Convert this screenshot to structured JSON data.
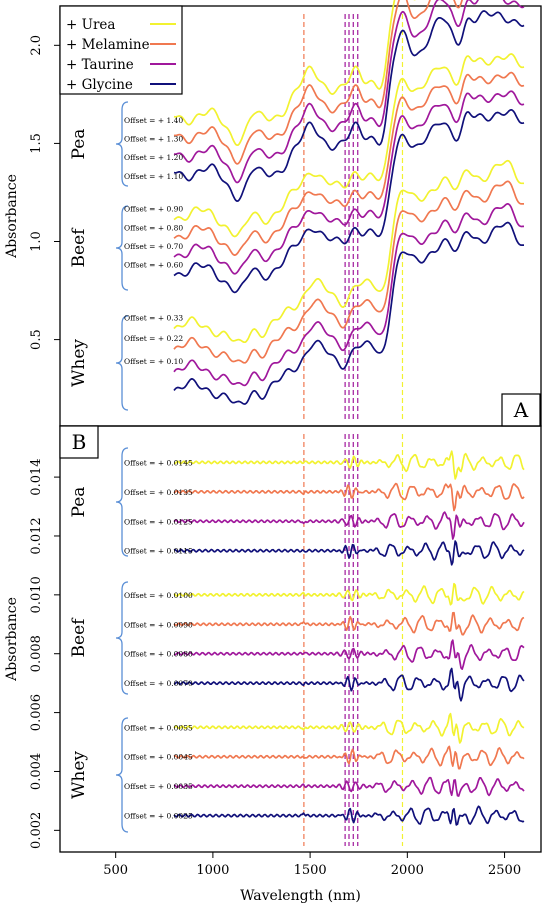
{
  "chart_data": [
    {
      "panel": "A",
      "type": "line",
      "xlabel": "Wavelength (nm)",
      "ylabel": "Absorbance",
      "xlim": [
        800,
        2600
      ],
      "ylim": [
        0.08,
        2.18
      ],
      "yticks": [
        "0.5",
        "1.0",
        "1.5",
        "2.0"
      ],
      "ytick_values": [
        0.5,
        1.0,
        1.5,
        2.0
      ],
      "legend": {
        "placement": "top-left",
        "entries": [
          {
            "label": "+ Urea",
            "color": "#f2f230"
          },
          {
            "label": "+ Melamine",
            "color": "#f07850"
          },
          {
            "label": "+ Taurine",
            "color": "#a0189c"
          },
          {
            "label": "+ Glycine",
            "color": "#10107a"
          }
        ]
      },
      "reference_lines": [
        {
          "x": 1468,
          "color": "#f07850"
        },
        {
          "x": 1680,
          "color": "#a0189c"
        },
        {
          "x": 1700,
          "color": "#a0189c"
        },
        {
          "x": 1722,
          "color": "#a0189c"
        },
        {
          "x": 1745,
          "color": "#a0189c"
        },
        {
          "x": 1975,
          "color": "#f2f230"
        }
      ],
      "groups": [
        {
          "name": "Pea",
          "series": [
            {
              "additive": "Urea",
              "offset_label": "Offset = + 1.40",
              "offset": 1.4,
              "color": "#f2f230"
            },
            {
              "additive": "Melamine",
              "offset_label": "Offset = + 1.30",
              "offset": 1.3,
              "color": "#f07850"
            },
            {
              "additive": "Taurine",
              "offset_label": "Offset = + 1.20",
              "offset": 1.2,
              "color": "#a0189c"
            },
            {
              "additive": "Glycine",
              "offset_label": "Offset = + 1.10",
              "offset": 1.1,
              "color": "#10107a"
            }
          ]
        },
        {
          "name": "Beef",
          "series": [
            {
              "additive": "Urea",
              "offset_label": "Offset = + 0.90",
              "offset": 0.9,
              "color": "#f2f230"
            },
            {
              "additive": "Melamine",
              "offset_label": "Offset = + 0.80",
              "offset": 0.8,
              "color": "#f07850"
            },
            {
              "additive": "Taurine",
              "offset_label": "Offset = + 0.70",
              "offset": 0.7,
              "color": "#a0189c"
            },
            {
              "additive": "Glycine",
              "offset_label": "Offset = + 0.60",
              "offset": 0.6,
              "color": "#10107a"
            }
          ]
        },
        {
          "name": "Whey",
          "series": [
            {
              "additive": "Urea",
              "offset_label": "Offset = + 0.33",
              "offset": 0.33,
              "color": "#f2f230"
            },
            {
              "additive": "Melamine",
              "offset_label": "Offset = + 0.22",
              "offset": 0.22,
              "color": "#f07850"
            },
            {
              "additive": "Taurine",
              "offset_label": "Offset = + 0.10",
              "offset": 0.1,
              "color": "#a0189c"
            },
            {
              "additive": "Glycine",
              "offset_label": "",
              "offset": 0.0,
              "color": "#10107a"
            }
          ]
        }
      ]
    },
    {
      "panel": "B",
      "type": "line",
      "xlabel": "Wavelength (nm)",
      "ylabel": "Absorbance",
      "xlim": [
        800,
        2600
      ],
      "ylim": [
        0.0014,
        0.0156
      ],
      "xticks": [
        "500",
        "1000",
        "1500",
        "2000",
        "2500"
      ],
      "xtick_values": [
        500,
        1000,
        1500,
        2000,
        2500
      ],
      "yticks": [
        "0.002",
        "0.004",
        "0.006",
        "0.008",
        "0.010",
        "0.012",
        "0.014"
      ],
      "ytick_values": [
        0.002,
        0.004,
        0.006,
        0.008,
        0.01,
        0.012,
        0.014
      ],
      "reference_lines": [
        {
          "x": 1468,
          "color": "#f07850"
        },
        {
          "x": 1680,
          "color": "#a0189c"
        },
        {
          "x": 1700,
          "color": "#a0189c"
        },
        {
          "x": 1722,
          "color": "#a0189c"
        },
        {
          "x": 1745,
          "color": "#a0189c"
        },
        {
          "x": 1975,
          "color": "#f2f230"
        }
      ],
      "groups": [
        {
          "name": "Pea",
          "series": [
            {
              "additive": "Urea",
              "offset_label": "Offset = + 0.0145",
              "offset": 0.0145,
              "color": "#f2f230"
            },
            {
              "additive": "Melamine",
              "offset_label": "Offset = + 0.0135",
              "offset": 0.0135,
              "color": "#f07850"
            },
            {
              "additive": "Taurine",
              "offset_label": "Offset = + 0.0125",
              "offset": 0.0125,
              "color": "#a0189c"
            },
            {
              "additive": "Glycine",
              "offset_label": "Offset = + 0.0115",
              "offset": 0.0115,
              "color": "#10107a"
            }
          ]
        },
        {
          "name": "Beef",
          "series": [
            {
              "additive": "Urea",
              "offset_label": "Offset = + 0.0100",
              "offset": 0.01,
              "color": "#f2f230"
            },
            {
              "additive": "Melamine",
              "offset_label": "Offset = + 0.0090",
              "offset": 0.009,
              "color": "#f07850"
            },
            {
              "additive": "Taurine",
              "offset_label": "Offset = + 0.0080",
              "offset": 0.008,
              "color": "#a0189c"
            },
            {
              "additive": "Glycine",
              "offset_label": "Offset = + 0.0070",
              "offset": 0.007,
              "color": "#10107a"
            }
          ]
        },
        {
          "name": "Whey",
          "series": [
            {
              "additive": "Urea",
              "offset_label": "Offset = + 0.0055",
              "offset": 0.0055,
              "color": "#f2f230"
            },
            {
              "additive": "Melamine",
              "offset_label": "Offset = + 0.0045",
              "offset": 0.0045,
              "color": "#f07850"
            },
            {
              "additive": "Taurine",
              "offset_label": "Offset = + 0.0035",
              "offset": 0.0035,
              "color": "#a0189c"
            },
            {
              "additive": "Glycine",
              "offset_label": "Offset = + 0.0025",
              "offset": 0.0025,
              "color": "#10107a"
            }
          ]
        }
      ]
    }
  ]
}
